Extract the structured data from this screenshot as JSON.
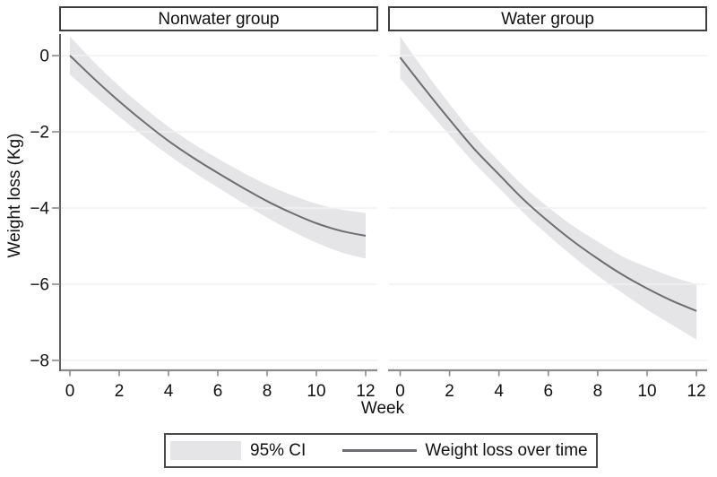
{
  "chart_data": {
    "type": "line",
    "faceted": true,
    "title": "",
    "xlabel": "Week",
    "ylabel": "Weight loss (Kg)",
    "x": [
      0,
      1,
      2,
      3,
      4,
      5,
      6,
      7,
      8,
      9,
      10,
      11,
      12
    ],
    "x_ticks": [
      0,
      2,
      4,
      6,
      8,
      10,
      12
    ],
    "x_tick_labels": [
      "0",
      "2",
      "4",
      "6",
      "8",
      "10",
      "12"
    ],
    "y_ticks": [
      0,
      -2,
      -4,
      -6,
      -8
    ],
    "y_tick_labels": [
      "0",
      "−2",
      "−4",
      "−6",
      "−8"
    ],
    "xlim": [
      -0.4,
      12.45
    ],
    "ylim": [
      -8.3,
      0.57
    ],
    "grid": "horizontal",
    "legend_position": "bottom",
    "legend": {
      "ci_label": "95% CI",
      "line_label": "Weight loss over time"
    },
    "panels": [
      {
        "title": "Nonwater group",
        "series": {
          "name": "Weight loss over time",
          "mean": [
            0,
            -0.62,
            -1.2,
            -1.74,
            -2.24,
            -2.68,
            -3.08,
            -3.46,
            -3.82,
            -4.13,
            -4.4,
            -4.6,
            -4.73
          ],
          "ci_high": [
            0.5,
            -0.18,
            -0.8,
            -1.36,
            -1.87,
            -2.31,
            -2.7,
            -3.06,
            -3.39,
            -3.66,
            -3.89,
            -4.04,
            -4.13
          ],
          "ci_low": [
            -0.5,
            -1.06,
            -1.6,
            -2.12,
            -2.61,
            -3.05,
            -3.46,
            -3.86,
            -4.25,
            -4.6,
            -4.91,
            -5.16,
            -5.33
          ]
        }
      },
      {
        "title": "Water group",
        "series": {
          "name": "Weight loss over time",
          "mean": [
            -0.05,
            -0.88,
            -1.68,
            -2.45,
            -3.12,
            -3.78,
            -4.35,
            -4.87,
            -5.33,
            -5.75,
            -6.11,
            -6.43,
            -6.7
          ],
          "ci_high": [
            0.5,
            -0.41,
            -1.27,
            -2.08,
            -2.77,
            -3.43,
            -3.98,
            -4.47,
            -4.88,
            -5.27,
            -5.55,
            -5.8,
            -6.0
          ],
          "ci_low": [
            -0.6,
            -1.35,
            -2.09,
            -2.82,
            -3.47,
            -4.13,
            -4.72,
            -5.27,
            -5.78,
            -6.23,
            -6.67,
            -7.06,
            -7.45
          ]
        }
      }
    ],
    "colors": {
      "ci_band": "#e5e5e7",
      "trend_line": "#6e6e72",
      "axis_line": "#8b8b8b",
      "y_spine": "#5f5f5f",
      "grid_line": "#f0f1f2",
      "text": "#111111",
      "panel_border": "#3f3f3f"
    }
  }
}
